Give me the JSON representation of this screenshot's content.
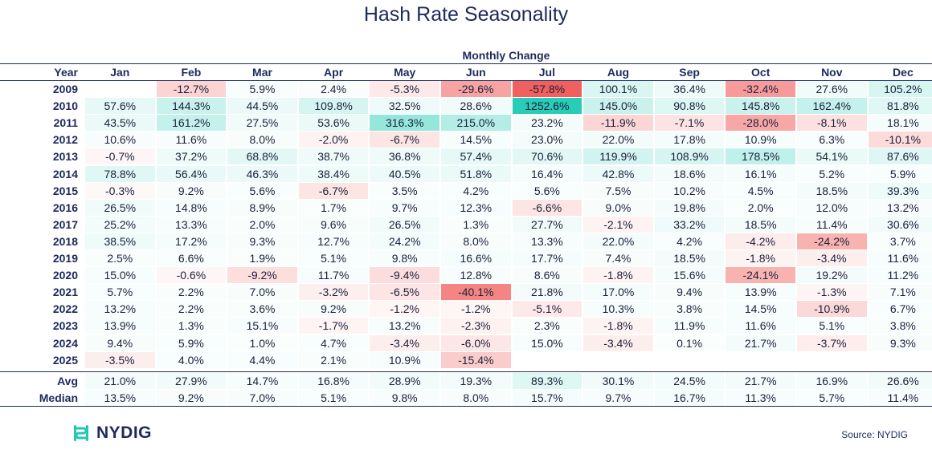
{
  "title": "Hash Rate Seasonality",
  "subtitle": "Monthly Change",
  "source": "Source: NYDIG",
  "brand": "NYDIG",
  "colors": {
    "positive": "#12c7ae",
    "negative": "#ef5350",
    "text": "#1c2a5e",
    "brand": "#21c8b2"
  },
  "chart_data": {
    "type": "table",
    "year_header": "Year",
    "columns": [
      "Jan",
      "Feb",
      "Mar",
      "Apr",
      "May",
      "Jun",
      "Jul",
      "Aug",
      "Sep",
      "Oct",
      "Nov",
      "Dec"
    ],
    "rows": [
      {
        "label": "2009",
        "values": [
          null,
          -12.7,
          5.9,
          2.4,
          -5.3,
          -29.6,
          -57.8,
          100.1,
          36.4,
          -32.4,
          27.6,
          105.2
        ]
      },
      {
        "label": "2010",
        "values": [
          57.6,
          144.3,
          44.5,
          109.8,
          32.5,
          28.6,
          1252.6,
          145.0,
          90.8,
          145.8,
          162.4,
          81.8
        ]
      },
      {
        "label": "2011",
        "values": [
          43.5,
          161.2,
          27.5,
          53.6,
          316.3,
          215.0,
          23.2,
          -11.9,
          -7.1,
          -28.0,
          -8.1,
          18.1
        ]
      },
      {
        "label": "2012",
        "values": [
          10.6,
          11.6,
          8.0,
          -2.0,
          -6.7,
          14.5,
          23.0,
          22.0,
          17.8,
          10.9,
          6.3,
          -10.1
        ]
      },
      {
        "label": "2013",
        "values": [
          -0.7,
          37.2,
          68.8,
          38.7,
          36.8,
          57.4,
          70.6,
          119.9,
          108.9,
          178.5,
          54.1,
          87.6
        ]
      },
      {
        "label": "2014",
        "values": [
          78.8,
          56.4,
          46.3,
          38.4,
          40.5,
          51.8,
          16.4,
          42.8,
          18.6,
          16.1,
          5.2,
          5.9
        ]
      },
      {
        "label": "2015",
        "values": [
          -0.3,
          9.2,
          5.6,
          -6.7,
          3.5,
          4.2,
          5.6,
          7.5,
          10.2,
          4.5,
          18.5,
          39.3
        ]
      },
      {
        "label": "2016",
        "values": [
          26.5,
          14.8,
          8.9,
          1.7,
          9.7,
          12.3,
          -6.6,
          9.0,
          19.8,
          2.0,
          12.0,
          13.2
        ]
      },
      {
        "label": "2017",
        "values": [
          25.2,
          13.3,
          2.0,
          9.6,
          26.5,
          1.3,
          27.7,
          -2.1,
          33.2,
          18.5,
          11.4,
          30.6
        ]
      },
      {
        "label": "2018",
        "values": [
          38.5,
          17.2,
          9.3,
          12.7,
          24.2,
          8.0,
          13.3,
          22.0,
          4.2,
          -4.2,
          -24.2,
          3.7
        ]
      },
      {
        "label": "2019",
        "values": [
          2.5,
          6.6,
          1.9,
          5.1,
          9.8,
          16.6,
          17.7,
          7.4,
          18.5,
          -1.8,
          -3.4,
          11.6
        ]
      },
      {
        "label": "2020",
        "values": [
          15.0,
          -0.6,
          -9.2,
          11.7,
          -9.4,
          12.8,
          8.6,
          -1.8,
          15.6,
          -24.1,
          19.2,
          11.2
        ]
      },
      {
        "label": "2021",
        "values": [
          5.7,
          2.2,
          7.0,
          -3.2,
          -6.5,
          -40.1,
          21.8,
          17.0,
          9.4,
          13.9,
          -1.3,
          7.1
        ]
      },
      {
        "label": "2022",
        "values": [
          13.2,
          2.2,
          3.6,
          9.2,
          -1.2,
          -1.2,
          -5.1,
          10.3,
          3.8,
          14.5,
          -10.9,
          6.7
        ]
      },
      {
        "label": "2023",
        "values": [
          13.9,
          1.3,
          15.1,
          -1.7,
          13.2,
          -2.3,
          2.3,
          -1.8,
          11.9,
          11.6,
          5.1,
          3.8
        ]
      },
      {
        "label": "2024",
        "values": [
          9.4,
          5.9,
          1.0,
          4.7,
          -3.4,
          -6.0,
          15.0,
          -3.4,
          0.1,
          21.7,
          -3.7,
          9.3
        ]
      },
      {
        "label": "2025",
        "values": [
          -3.5,
          4.0,
          4.4,
          2.1,
          10.9,
          -15.4,
          null,
          null,
          null,
          null,
          null,
          null
        ]
      }
    ],
    "summary_rows": [
      {
        "label": "Avg",
        "values": [
          21.0,
          27.9,
          14.7,
          16.8,
          28.9,
          19.3,
          89.3,
          30.1,
          24.5,
          21.7,
          16.9,
          26.6
        ]
      },
      {
        "label": "Median",
        "values": [
          13.5,
          9.2,
          7.0,
          5.1,
          9.8,
          8.0,
          15.7,
          9.7,
          16.7,
          11.3,
          5.7,
          11.4
        ]
      }
    ],
    "unit": "%"
  }
}
